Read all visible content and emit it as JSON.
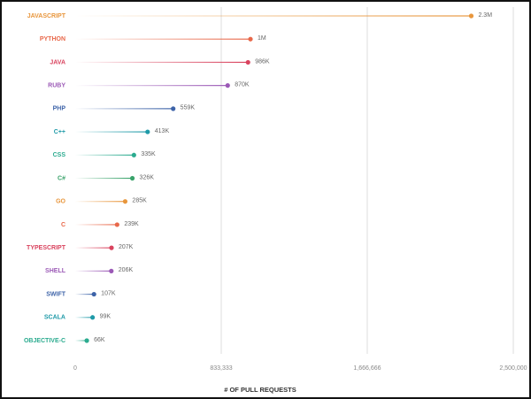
{
  "chart_data": {
    "type": "lollipop",
    "x_label": "# OF PULL REQUESTS",
    "categories": [
      "JAVASCRIPT",
      "PYTHON",
      "JAVA",
      "RUBY",
      "PHP",
      "C++",
      "CSS",
      "C#",
      "GO",
      "C",
      "TYPESCRIPT",
      "SHELL",
      "SWIFT",
      "SCALA",
      "OBJECTIVE-C"
    ],
    "values": [
      2260000,
      1000000,
      986000,
      870000,
      559000,
      413000,
      335000,
      326000,
      285000,
      239000,
      207000,
      206000,
      107000,
      99000,
      66000
    ],
    "value_labels": [
      "2.3M",
      "1M",
      "986K",
      "870K",
      "559K",
      "413K",
      "335K",
      "326K",
      "285K",
      "239K",
      "207K",
      "206K",
      "107K",
      "99K",
      "66K"
    ],
    "colors": [
      "#e8963c",
      "#e8684a",
      "#d9435e",
      "#9b59b6",
      "#3d63a8",
      "#1f9aa8",
      "#2bab8f",
      "#3aa36b",
      "#e8963c",
      "#e8684a",
      "#d9435e",
      "#9b59b6",
      "#3d63a8",
      "#1f9aa8",
      "#2bab8f"
    ],
    "xlim": [
      0,
      2500000
    ],
    "xticks": [
      0,
      {
        "value": 833333,
        "label": "833,333"
      },
      {
        "value": 1666666,
        "label": "1,666,666"
      },
      {
        "value": 2500000,
        "label": "2,500,000"
      }
    ],
    "grid": true
  }
}
